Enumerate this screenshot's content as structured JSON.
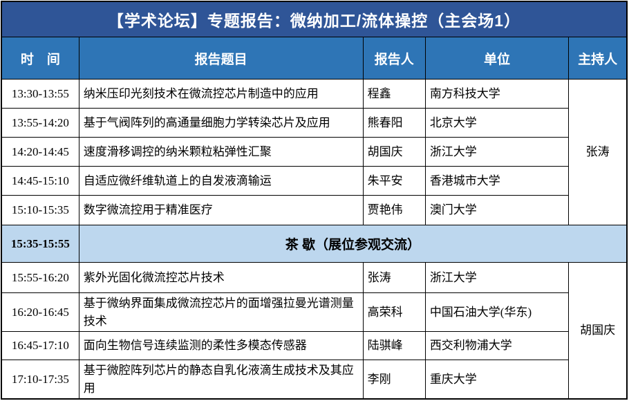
{
  "page": {
    "title": "【学术论坛】专题报告：微纳加工/流体操控（主会场1）"
  },
  "columns": {
    "time": "时　间",
    "topic": "报告题目",
    "speaker": "报告人",
    "affiliation": "单位",
    "host": "主持人"
  },
  "session1": {
    "host": "张涛",
    "rows": [
      {
        "time": "13:30-13:55",
        "topic": "纳米压印光刻技术在微流控芯片制造中的应用",
        "speaker": "程鑫",
        "affiliation": "南方科技大学"
      },
      {
        "time": "13:55-14:20",
        "topic": "基于气阀阵列的高通量细胞力学转染芯片及应用",
        "speaker": "熊春阳",
        "affiliation": "北京大学"
      },
      {
        "time": "14:20-14:45",
        "topic": "速度滑移调控的纳米颗粒粘弹性汇聚",
        "speaker": "胡国庆",
        "affiliation": "浙江大学"
      },
      {
        "time": "14:45-15:10",
        "topic": "自适应微纤维轨道上的自发液滴输运",
        "speaker": "朱平安",
        "affiliation": "香港城市大学"
      },
      {
        "time": "15:10-15:35",
        "topic": "数字微流控用于精准医疗",
        "speaker": "贾艳伟",
        "affiliation": "澳门大学"
      }
    ]
  },
  "break": {
    "time": "15:35-15:55",
    "label": "茶 歇（展位参观交流）"
  },
  "session2": {
    "host": "胡国庆",
    "rows": [
      {
        "time": "15:55-16:20",
        "topic": "紫外光固化微流控芯片技术",
        "speaker": "张涛",
        "affiliation": "浙江大学"
      },
      {
        "time": "16:20-16:45",
        "topic": "基于微纳界面集成微流控芯片的面增强拉曼光谱测量技术",
        "speaker": "高荣科",
        "affiliation": "中国石油大学(华东)"
      },
      {
        "time": "16:45-17:10",
        "topic": "面向生物信号连续监测的柔性多模态传感器",
        "speaker": "陆骐峰",
        "affiliation": "西交利物浦大学"
      },
      {
        "time": "17:10-17:35",
        "topic": "基于微腔阵列芯片的静态自乳化液滴生成技术及其应用",
        "speaker": "李刚",
        "affiliation": "重庆大学"
      }
    ]
  },
  "colors": {
    "title_bar_bg": "#2F5597",
    "header_bg": "#2E75B6",
    "break_bg": "#BDD7EE",
    "border": "#000000",
    "header_text": "#FFFFFF",
    "body_text": "#000000"
  }
}
